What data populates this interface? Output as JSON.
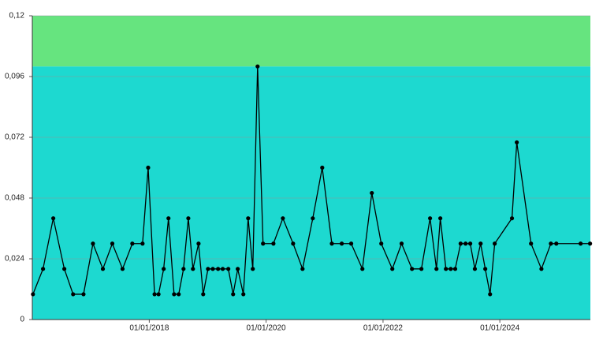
{
  "chart_data": {
    "type": "line",
    "x": [
      "2016-01-05",
      "2016-03-08",
      "2016-05-11",
      "2016-07-19",
      "2016-09-12",
      "2016-11-16",
      "2017-01-14",
      "2017-03-17",
      "2017-05-15",
      "2017-07-18",
      "2017-09-17",
      "2017-11-20",
      "2017-12-25",
      "2018-02-03",
      "2018-02-28",
      "2018-04-01",
      "2018-05-01",
      "2018-06-05",
      "2018-07-04",
      "2018-08-03",
      "2018-09-02",
      "2018-10-01",
      "2018-11-05",
      "2018-12-04",
      "2019-01-03",
      "2019-02-02",
      "2019-03-07",
      "2019-04-05",
      "2019-05-10",
      "2019-06-09",
      "2019-07-08",
      "2019-08-12",
      "2019-09-11",
      "2019-10-10",
      "2019-11-09",
      "2019-12-13",
      "2020-02-16",
      "2020-04-15",
      "2020-06-18",
      "2020-08-16",
      "2020-10-19",
      "2020-12-17",
      "2021-02-15",
      "2021-04-18",
      "2021-06-16",
      "2021-08-25",
      "2021-10-23",
      "2021-12-21",
      "2022-02-28",
      "2022-04-27",
      "2022-07-01",
      "2022-08-29",
      "2022-10-22",
      "2022-12-01",
      "2022-12-25",
      "2023-01-29",
      "2023-02-28",
      "2023-03-28",
      "2023-05-01",
      "2023-06-01",
      "2023-06-30",
      "2023-07-29",
      "2023-09-03",
      "2023-10-02",
      "2023-11-01",
      "2023-11-30",
      "2024-03-17",
      "2024-04-16",
      "2024-07-14",
      "2024-09-17",
      "2024-11-15",
      "2024-12-19",
      "2025-05-20",
      "2025-07-18"
    ],
    "series": [
      {
        "color": "#000000",
        "values": [
          0.01,
          0.02,
          0.04,
          0.02,
          0.01,
          0.01,
          0.03,
          0.02,
          0.03,
          0.02,
          0.03,
          0.03,
          0.06,
          0.01,
          0.01,
          0.02,
          0.04,
          0.01,
          0.01,
          0.02,
          0.04,
          0.02,
          0.03,
          0.01,
          0.02,
          0.02,
          0.02,
          0.02,
          0.02,
          0.01,
          0.02,
          0.01,
          0.04,
          0.02,
          0.1,
          0.03,
          0.03,
          0.04,
          0.03,
          0.02,
          0.04,
          0.06,
          0.03,
          0.03,
          0.03,
          0.02,
          0.05,
          0.03,
          0.02,
          0.03,
          0.02,
          0.02,
          0.04,
          0.02,
          0.04,
          0.02,
          0.02,
          0.02,
          0.03,
          0.03,
          0.03,
          0.02,
          0.03,
          0.02,
          0.01,
          0.03,
          0.04,
          0.07,
          0.03,
          0.02,
          0.03,
          0.03,
          0.03,
          0.03
        ]
      }
    ],
    "xlim": [
      "2016-01-01",
      "2025-07-20"
    ],
    "xticks": [
      {
        "value": "2018-01-01",
        "label": "01/01/2018"
      },
      {
        "value": "2020-01-01",
        "label": "01/01/2020"
      },
      {
        "value": "2022-01-01",
        "label": "01/01/2022"
      },
      {
        "value": "2024-01-01",
        "label": "01/01/2024"
      }
    ],
    "ylim": [
      0,
      0.12
    ],
    "yticks": [
      0,
      {
        "value": 0.024,
        "label": "0,024"
      },
      {
        "value": 0.048,
        "label": "0,048"
      },
      {
        "value": 0.072,
        "label": "0,072"
      },
      {
        "value": 0.096,
        "label": "0,096"
      },
      {
        "value": 0.12,
        "label": "0,12"
      }
    ],
    "bands": [
      {
        "from": 0,
        "to": 0.1,
        "color": "#1dd9d0"
      },
      {
        "from": 0.1,
        "to": 0.12,
        "color": "#66e47f"
      }
    ],
    "grid": true
  }
}
